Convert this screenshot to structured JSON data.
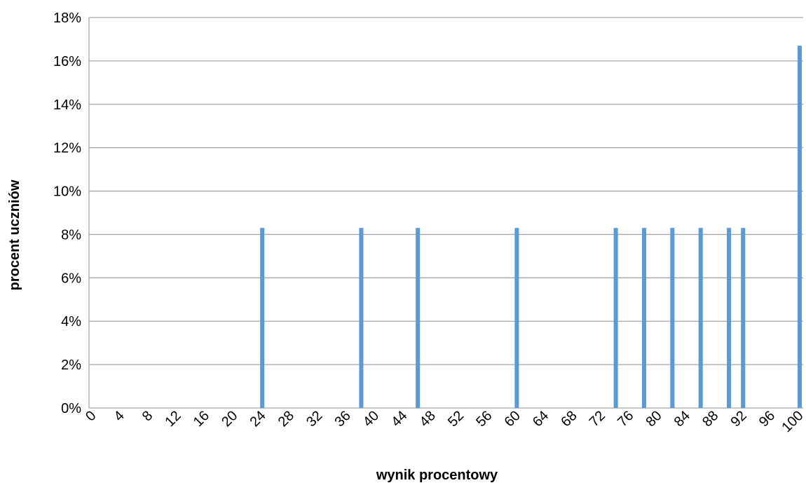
{
  "chart_data": {
    "type": "bar",
    "title": "",
    "xlabel": "wynik procentowy",
    "ylabel": "procent uczniów",
    "ylim": [
      0,
      18
    ],
    "yticks": [
      0,
      2,
      4,
      6,
      8,
      10,
      12,
      14,
      16,
      18
    ],
    "ytick_suffix": "%",
    "grid": true,
    "legend": "none",
    "bar_color": "#5b9bd5",
    "xtick_labels": [
      "0",
      "4",
      "8",
      "12",
      "16",
      "20",
      "24",
      "28",
      "32",
      "36",
      "40",
      "44",
      "48",
      "52",
      "56",
      "60",
      "64",
      "68",
      "72",
      "76",
      "80",
      "84",
      "88",
      "92",
      "96",
      "100"
    ],
    "x": [
      24,
      38,
      46,
      60,
      74,
      78,
      82,
      86,
      90,
      92,
      100
    ],
    "values": [
      8.3,
      8.3,
      8.3,
      8.3,
      8.3,
      8.3,
      8.3,
      8.3,
      8.3,
      8.3,
      16.7
    ]
  }
}
